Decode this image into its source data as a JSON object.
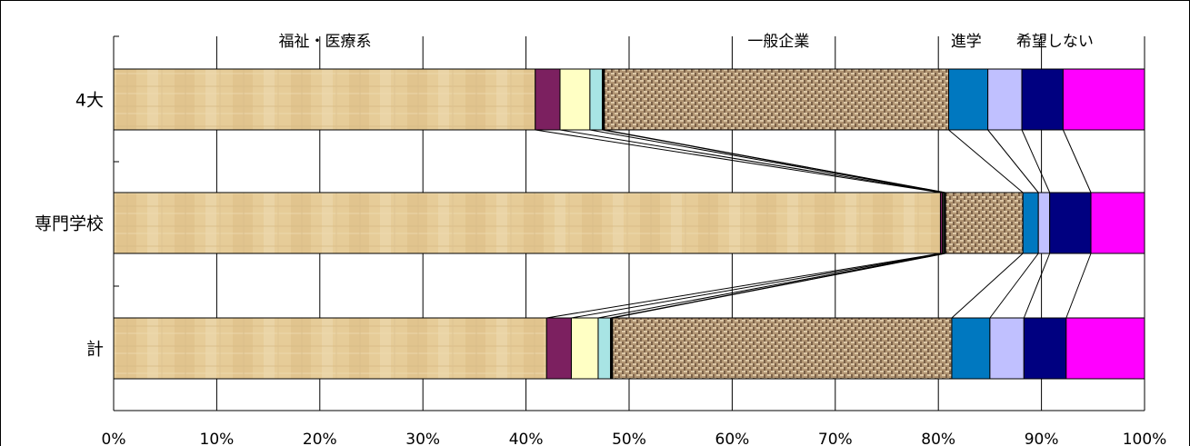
{
  "chart_data": {
    "type": "bar",
    "orientation": "horizontal",
    "stacked": "100%",
    "categories": [
      "4大",
      "専門学校",
      "計"
    ],
    "x_tick_labels": [
      "0%",
      "10%",
      "20%",
      "30%",
      "40%",
      "50%",
      "60%",
      "70%",
      "80%",
      "90%",
      "100%"
    ],
    "xlim": [
      0,
      100
    ],
    "grid": true,
    "series_lines": true,
    "group_labels": [
      {
        "text": "福祉・医療系",
        "x": 20.5
      },
      {
        "text": "一般企業",
        "x": 64.5
      },
      {
        "text": "進学",
        "x": 82.7
      },
      {
        "text": "希望しない",
        "x": 91.3
      }
    ],
    "segments": [
      {
        "fill": "#e4ca96",
        "pattern": "paper",
        "values": [
          40.9,
          80.2,
          42.0
        ]
      },
      {
        "fill": "#7c2060",
        "pattern": "",
        "values": [
          2.4,
          0.2,
          2.4
        ]
      },
      {
        "fill": "#ffffc4",
        "pattern": "",
        "values": [
          2.9,
          0.1,
          2.6
        ]
      },
      {
        "fill": "#a8e4e4",
        "pattern": "",
        "values": [
          1.2,
          0.1,
          1.2
        ]
      },
      {
        "fill": "#000000",
        "pattern": "",
        "values": [
          0.2,
          0.1,
          0.2
        ]
      },
      {
        "fill": "#b09470",
        "pattern": "weave",
        "values": [
          33.4,
          7.5,
          32.9
        ]
      },
      {
        "fill": "#0078c0",
        "pattern": "",
        "values": [
          3.8,
          1.5,
          3.7
        ]
      },
      {
        "fill": "#c0c0ff",
        "pattern": "",
        "values": [
          3.3,
          1.1,
          3.3
        ]
      },
      {
        "fill": "#000080",
        "pattern": "",
        "values": [
          4.0,
          4.0,
          4.1
        ]
      },
      {
        "fill": "#ff00ff",
        "pattern": "",
        "values": [
          7.9,
          5.2,
          7.6
        ]
      }
    ]
  }
}
